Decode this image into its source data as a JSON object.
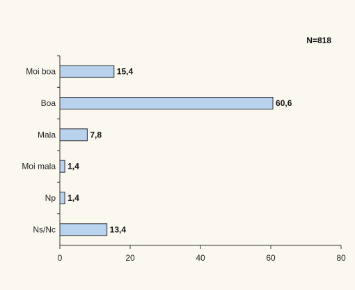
{
  "chart_data": {
    "type": "bar",
    "orientation": "horizontal",
    "annotation": "N=818",
    "categories": [
      "Moi boa",
      "Boa",
      "Mala",
      "Moi mala",
      "Np",
      "Ns/Nc"
    ],
    "values": [
      15.4,
      60.6,
      7.8,
      1.4,
      1.4,
      13.4
    ],
    "value_labels": [
      "15,4",
      "60,6",
      "7,8",
      "1,4",
      "1,4",
      "13,4"
    ],
    "xlim": [
      0,
      80
    ],
    "xticks": [
      0,
      20,
      40,
      60,
      80
    ],
    "xtick_labels": [
      "0",
      "20",
      "40",
      "60",
      "80"
    ],
    "grid": false,
    "colors": {
      "bar_fill": "#b9d3ef",
      "bar_stroke": "#2a2a2a",
      "background": "#fbf8ef"
    }
  }
}
